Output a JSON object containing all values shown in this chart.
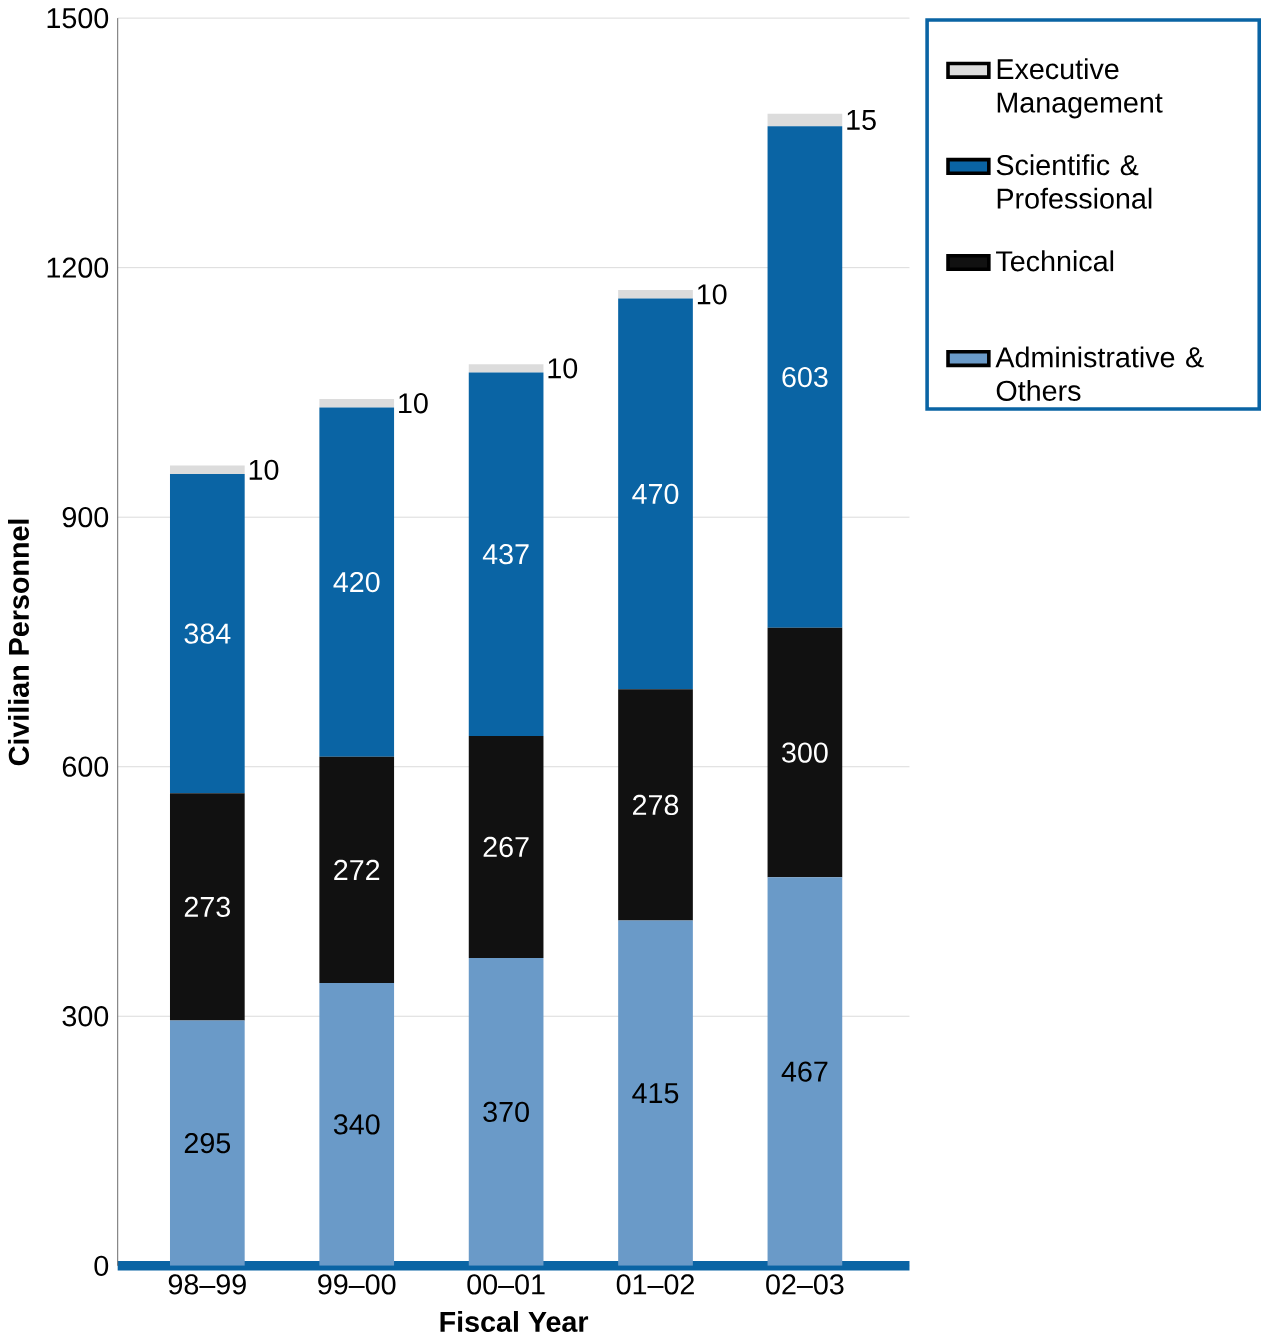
{
  "chart_data": {
    "type": "bar",
    "stacked": true,
    "xlabel": "Fiscal Year",
    "ylabel": "Civilian Personnel",
    "categories": [
      "98–99",
      "99–00",
      "00–01",
      "01–02",
      "02–03"
    ],
    "series": [
      {
        "name": "Administrative & Others",
        "color": "#6a9ac8",
        "values": [
          295,
          340,
          370,
          415,
          467
        ]
      },
      {
        "name": "Technical",
        "color": "#111111",
        "values": [
          273,
          272,
          267,
          278,
          300
        ]
      },
      {
        "name": "Scientific & Professional",
        "color": "#0a64a4",
        "values": [
          384,
          420,
          437,
          470,
          603
        ]
      },
      {
        "name": "Executive Management",
        "color": "#dcdcdc",
        "values": [
          10,
          10,
          10,
          10,
          15
        ]
      }
    ],
    "ylim": [
      0,
      1500
    ],
    "yticks": [
      0,
      300,
      600,
      900,
      1200,
      1500
    ],
    "grid": "y",
    "legend": "top right",
    "data_labels": true
  }
}
